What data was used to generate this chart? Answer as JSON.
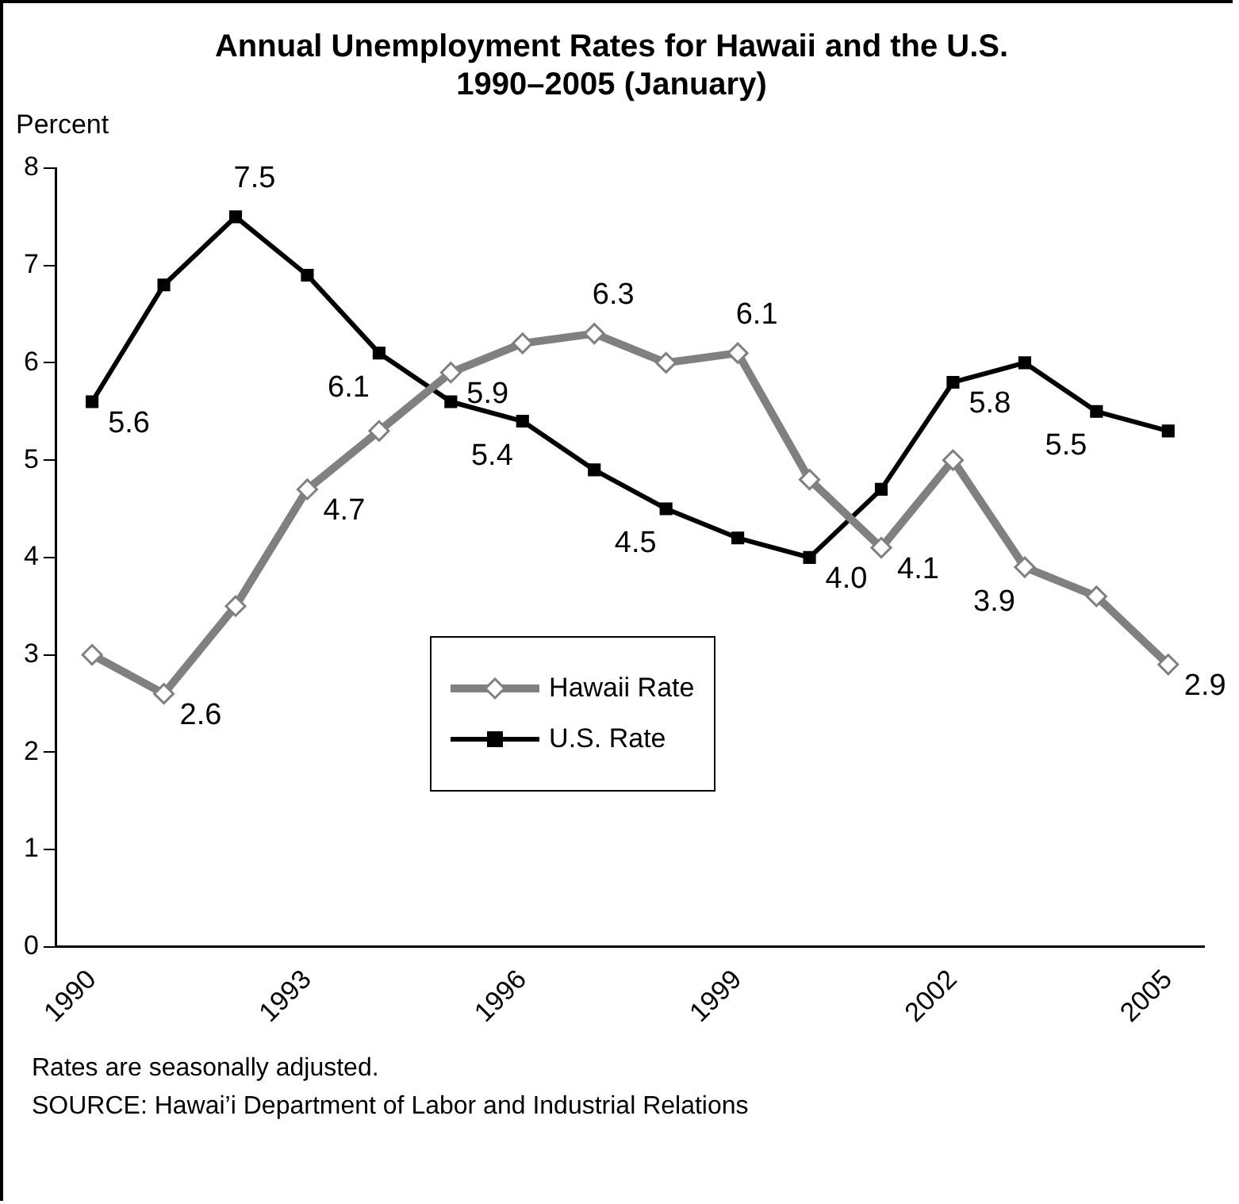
{
  "chart_data": {
    "type": "line",
    "title": "Annual Unemployment Rates for Hawaii and the U.S.\n1990–2005 (January)",
    "ylabel": "Percent",
    "categories": [
      "1990",
      null,
      null,
      "1993",
      null,
      null,
      "1996",
      null,
      null,
      "1999",
      null,
      null,
      "2002",
      null,
      null,
      "2005"
    ],
    "ylim": [
      0,
      8
    ],
    "yticks": [
      0,
      1,
      2,
      3,
      4,
      5,
      6,
      7,
      8
    ],
    "grid": false,
    "legend": "bottom",
    "series": [
      {
        "name": "Hawaii Rate",
        "color": "#808080",
        "marker": "diamond",
        "values": [
          3.0,
          2.6,
          3.5,
          4.7,
          5.3,
          5.9,
          6.2,
          6.3,
          6.0,
          6.1,
          4.8,
          4.1,
          5.0,
          3.9,
          3.6,
          2.9
        ],
        "value_labels": [
          null,
          "2.6",
          null,
          "4.7",
          null,
          "5.9",
          null,
          "6.3",
          null,
          "6.1",
          null,
          "4.1",
          null,
          "3.9",
          null,
          "2.9"
        ]
      },
      {
        "name": "U.S. Rate",
        "color": "#000000",
        "marker": "square",
        "values": [
          5.6,
          6.8,
          7.5,
          6.9,
          6.1,
          5.6,
          5.4,
          4.9,
          4.5,
          4.2,
          4.0,
          4.7,
          5.8,
          6.0,
          5.5,
          5.3
        ],
        "value_labels": [
          "5.6",
          null,
          "7.5",
          null,
          "6.1",
          null,
          "5.4",
          null,
          "4.5",
          null,
          "4.0",
          null,
          "5.8",
          null,
          "5.5",
          null
        ]
      }
    ],
    "annotations": [
      "Rates are seasonally adjusted.",
      "SOURCE:  Hawai’i Department of Labor and Industrial Relations"
    ]
  }
}
